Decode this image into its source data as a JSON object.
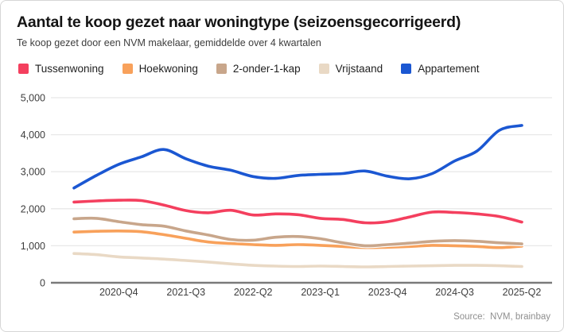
{
  "card": {
    "title": "Aantal te koop gezet naar woningtype (seizoensgecorrigeerd)",
    "subtitle": "Te koop gezet door een NVM makelaar, gemiddelde over 4 kwartalen",
    "source_label": "Source:",
    "source_value": "NVM, brainbay"
  },
  "colors": {
    "grid_line": "#e8e8e8",
    "zero_axis": "#7a7a7a",
    "tick_text": "#3d3d3d",
    "line_casing": "#ffffff"
  },
  "chart_data": {
    "type": "line",
    "title": "Aantal te koop gezet naar woningtype (seizoensgecorrigeerd)",
    "subtitle": "Te koop gezet door een NVM makelaar, gemiddelde over 4 kwartalen",
    "x": [
      "2020-Q2",
      "2020-Q3",
      "2020-Q4",
      "2021-Q1",
      "2021-Q2",
      "2021-Q3",
      "2021-Q4",
      "2022-Q1",
      "2022-Q2",
      "2022-Q3",
      "2022-Q4",
      "2023-Q1",
      "2023-Q2",
      "2023-Q3",
      "2023-Q4",
      "2024-Q1",
      "2024-Q2",
      "2024-Q3",
      "2024-Q4",
      "2025-Q1",
      "2025-Q2"
    ],
    "x_tick_indices": [
      2,
      5,
      8,
      11,
      14,
      17,
      20
    ],
    "x_tick_labels": [
      "2020-Q4",
      "2021-Q3",
      "2022-Q2",
      "2023-Q1",
      "2023-Q4",
      "2024-Q3",
      "2025-Q2"
    ],
    "ylim": [
      0,
      5000
    ],
    "y_ticks": [
      0,
      1000,
      2000,
      3000,
      4000,
      5000
    ],
    "y_tick_labels": [
      "0",
      "1,000",
      "2,000",
      "3,000",
      "4,000",
      "5,000"
    ],
    "grid": "horizontal",
    "legend_position": "top",
    "series": [
      {
        "name": "Tussenwoning",
        "color": "#f43f5e",
        "values": [
          2180,
          2210,
          2230,
          2220,
          2100,
          1950,
          1890,
          1960,
          1830,
          1860,
          1840,
          1740,
          1710,
          1620,
          1650,
          1780,
          1910,
          1900,
          1860,
          1790,
          1640
        ]
      },
      {
        "name": "Hoekwoning",
        "color": "#f8a15b",
        "values": [
          1370,
          1390,
          1400,
          1380,
          1300,
          1200,
          1100,
          1060,
          1030,
          1010,
          1030,
          1010,
          980,
          950,
          960,
          980,
          1010,
          1000,
          980,
          950,
          990
        ]
      },
      {
        "name": "2-onder-1-kap",
        "color": "#c8a68b",
        "values": [
          1730,
          1740,
          1650,
          1570,
          1530,
          1400,
          1290,
          1170,
          1150,
          1230,
          1250,
          1190,
          1080,
          1000,
          1030,
          1070,
          1120,
          1140,
          1120,
          1080,
          1050
        ]
      },
      {
        "name": "Vrijstaand",
        "color": "#e9d9c5",
        "values": [
          790,
          760,
          700,
          670,
          640,
          600,
          560,
          510,
          470,
          450,
          440,
          450,
          440,
          430,
          440,
          450,
          460,
          470,
          470,
          460,
          440
        ]
      },
      {
        "name": "Appartement",
        "color": "#1b57d2",
        "values": [
          2560,
          2900,
          3200,
          3400,
          3600,
          3350,
          3150,
          3040,
          2870,
          2820,
          2900,
          2930,
          2950,
          3020,
          2880,
          2810,
          2950,
          3290,
          3560,
          4120,
          4250
        ]
      }
    ],
    "draw_order": [
      3,
      1,
      2,
      0,
      4
    ]
  }
}
